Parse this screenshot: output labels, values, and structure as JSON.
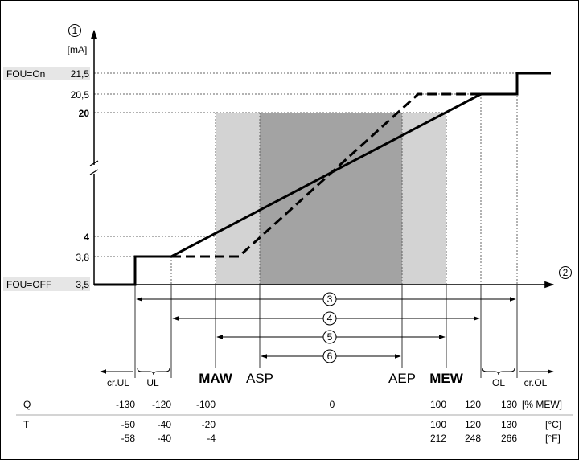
{
  "y_axis": {
    "marker": "1",
    "unit": "[mA]",
    "ticks": [
      {
        "label": "FOU=On",
        "value": "21,5",
        "bold": false
      },
      {
        "label": "",
        "value": "20,5",
        "bold": false
      },
      {
        "label": "",
        "value": "20",
        "bold": true
      },
      {
        "label": "",
        "value": "4",
        "bold": true
      },
      {
        "label": "",
        "value": "3,8",
        "bold": false
      },
      {
        "label": "FOU=OFF",
        "value": "3,5",
        "bold": false
      }
    ]
  },
  "x_axis": {
    "marker": "2"
  },
  "ranges": [
    {
      "marker": "3"
    },
    {
      "marker": "4"
    },
    {
      "marker": "5"
    },
    {
      "marker": "6"
    }
  ],
  "zones": {
    "cr_ul": "cr.UL",
    "ul": "UL",
    "maw": "MAW",
    "asp": "ASP",
    "aep": "AEP",
    "mew": "MEW",
    "ol": "OL",
    "cr_ol": "cr.OL"
  },
  "table": {
    "q_label": "Q",
    "q_values": [
      "-130",
      "-120",
      "-100",
      "0",
      "100",
      "120",
      "130"
    ],
    "q_unit": "[% MEW]",
    "t_label": "T",
    "c_values": [
      "-50",
      "-40",
      "-20",
      "100",
      "120",
      "130"
    ],
    "c_unit": "[°C]",
    "f_values": [
      "-58",
      "-40",
      "-4",
      "212",
      "248",
      "266"
    ],
    "f_unit": "[°F]"
  },
  "colors": {
    "light_band": "#d3d3d3",
    "dark_band": "#a3a3a3",
    "label_bg": "#e6e6e6"
  }
}
